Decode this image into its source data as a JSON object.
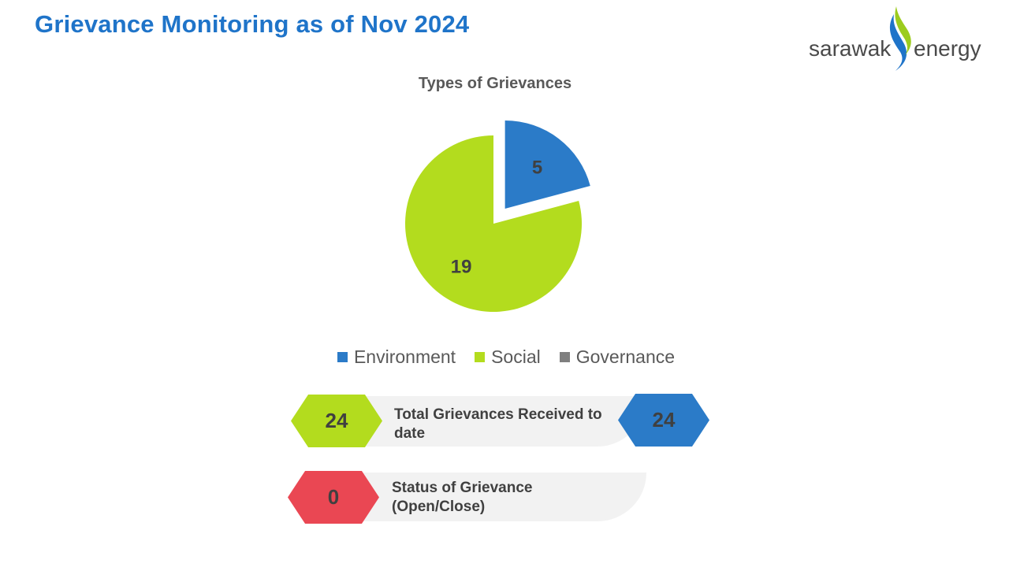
{
  "page": {
    "title": "Grievance Monitoring as of Nov 2024"
  },
  "logo": {
    "word_left": "sarawak",
    "word_right": "energy"
  },
  "chart_data": {
    "type": "pie",
    "title": "Types of Grievances",
    "categories": [
      "Environment",
      "Social",
      "Governance"
    ],
    "values": [
      5,
      19,
      0
    ],
    "colors": [
      "#2b7bc8",
      "#b3dc1e",
      "#7f7f7f"
    ],
    "exploded": "Environment",
    "legend": "bottom"
  },
  "kpis": {
    "total": {
      "label": "Total Grievances Received to\ndate",
      "left_value": "24",
      "right_value": "24",
      "left_color": "#b3dc1e",
      "right_color": "#2b7bc8"
    },
    "status": {
      "label": "Status of Grievance\n (Open/Close)",
      "value": "0",
      "color": "#ea4753"
    }
  }
}
